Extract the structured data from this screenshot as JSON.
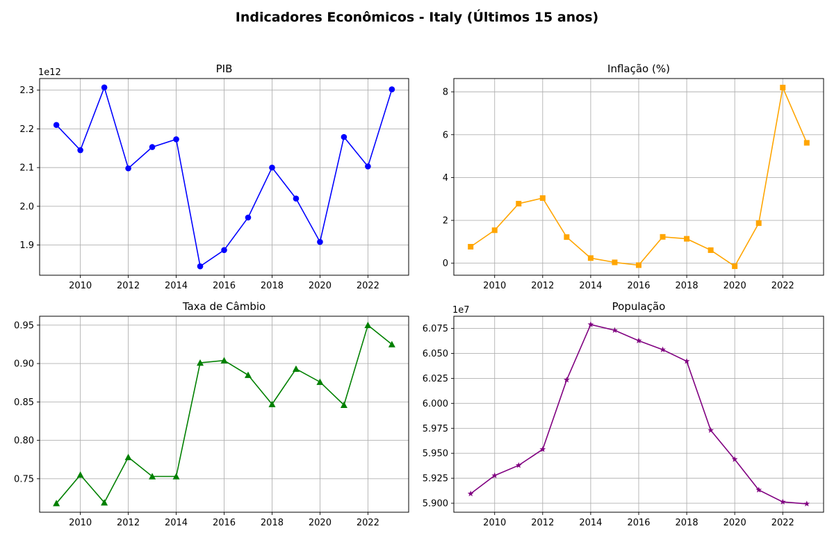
{
  "figure_title": "Indicadores Econômicos - Italy (Últimos 15 anos)",
  "chart_data": [
    {
      "type": "line",
      "title": "PIB",
      "xlabel": "",
      "ylabel": "",
      "offset_text": "1e12",
      "scale": 1000000000000.0,
      "color": "#0000ff",
      "marker": "circle",
      "x": [
        2009,
        2010,
        2011,
        2012,
        2013,
        2014,
        2015,
        2016,
        2017,
        2018,
        2019,
        2020,
        2021,
        2022,
        2023
      ],
      "y": [
        2210000000000.0,
        2145000000000.0,
        2307000000000.0,
        2098000000000.0,
        2153000000000.0,
        2173000000000.0,
        1845000000000.0,
        1887000000000.0,
        1971000000000.0,
        2100000000000.0,
        2020000000000.0,
        1908000000000.0,
        2179000000000.0,
        2103000000000.0,
        2302000000000.0
      ],
      "xlim": [
        2008.3,
        2023.7
      ],
      "ylim": [
        1822000000000.0,
        2330000000000.0
      ],
      "xticks": [
        2010,
        2012,
        2014,
        2016,
        2018,
        2020,
        2022
      ],
      "xtick_labels": [
        "2010",
        "2012",
        "2014",
        "2016",
        "2018",
        "2020",
        "2022"
      ],
      "yticks": [
        1900000000000.0,
        2000000000000.0,
        2100000000000.0,
        2200000000000.0,
        2300000000000.0
      ],
      "ytick_labels": [
        "1.9",
        "2.0",
        "2.1",
        "2.2",
        "2.3"
      ],
      "grid": true
    },
    {
      "type": "line",
      "title": "Inflação (%)",
      "xlabel": "",
      "ylabel": "",
      "offset_text": "",
      "scale": 1,
      "color": "#ffa500",
      "marker": "square",
      "x": [
        2009,
        2010,
        2011,
        2012,
        2013,
        2014,
        2015,
        2016,
        2017,
        2018,
        2019,
        2020,
        2021,
        2022,
        2023
      ],
      "y": [
        0.77,
        1.54,
        2.78,
        3.04,
        1.22,
        0.24,
        0.04,
        -0.09,
        1.23,
        1.14,
        0.61,
        -0.14,
        1.87,
        8.2,
        5.62
      ],
      "xlim": [
        2008.3,
        2023.7
      ],
      "ylim": [
        -0.56,
        8.62
      ],
      "xticks": [
        2010,
        2012,
        2014,
        2016,
        2018,
        2020,
        2022
      ],
      "xtick_labels": [
        "2010",
        "2012",
        "2014",
        "2016",
        "2018",
        "2020",
        "2022"
      ],
      "yticks": [
        0,
        2,
        4,
        6,
        8
      ],
      "ytick_labels": [
        "0",
        "2",
        "4",
        "6",
        "8"
      ],
      "grid": true
    },
    {
      "type": "line",
      "title": "Taxa de Câmbio",
      "xlabel": "",
      "ylabel": "",
      "offset_text": "",
      "scale": 1,
      "color": "#008000",
      "marker": "triangle",
      "x": [
        2009,
        2010,
        2011,
        2012,
        2013,
        2014,
        2015,
        2016,
        2017,
        2018,
        2019,
        2020,
        2021,
        2022,
        2023
      ],
      "y": [
        0.718,
        0.755,
        0.719,
        0.778,
        0.753,
        0.753,
        0.901,
        0.904,
        0.885,
        0.847,
        0.893,
        0.876,
        0.846,
        0.95,
        0.925
      ],
      "xlim": [
        2008.3,
        2023.7
      ],
      "ylim": [
        0.7064,
        0.9616
      ],
      "xticks": [
        2010,
        2012,
        2014,
        2016,
        2018,
        2020,
        2022
      ],
      "xtick_labels": [
        "2010",
        "2012",
        "2014",
        "2016",
        "2018",
        "2020",
        "2022"
      ],
      "yticks": [
        0.75,
        0.8,
        0.85,
        0.9,
        0.95
      ],
      "ytick_labels": [
        "0.75",
        "0.80",
        "0.85",
        "0.90",
        "0.95"
      ],
      "grid": true
    },
    {
      "type": "line",
      "title": "População",
      "xlabel": "",
      "ylabel": "",
      "offset_text": "1e7",
      "scale": 10000000.0,
      "color": "#800080",
      "marker": "star",
      "x": [
        2009,
        2010,
        2011,
        2012,
        2013,
        2014,
        2015,
        2016,
        2017,
        2018,
        2019,
        2020,
        2021,
        2022,
        2023
      ],
      "y": [
        59095000,
        59277000,
        59379000,
        59539000,
        60234000,
        60789000,
        60731000,
        60627000,
        60537000,
        60421000,
        59730000,
        59439000,
        59133000,
        59013000,
        58994000
      ],
      "xlim": [
        2008.3,
        2023.7
      ],
      "ylim": [
        58910000,
        60872000
      ],
      "xticks": [
        2010,
        2012,
        2014,
        2016,
        2018,
        2020,
        2022
      ],
      "xtick_labels": [
        "2010",
        "2012",
        "2014",
        "2016",
        "2018",
        "2020",
        "2022"
      ],
      "yticks": [
        59000000,
        59250000,
        59500000,
        59750000,
        60000000,
        60250000,
        60500000,
        60750000
      ],
      "ytick_labels": [
        "5.900",
        "5.925",
        "5.950",
        "5.975",
        "6.000",
        "6.025",
        "6.050",
        "6.075"
      ],
      "grid": true
    }
  ]
}
